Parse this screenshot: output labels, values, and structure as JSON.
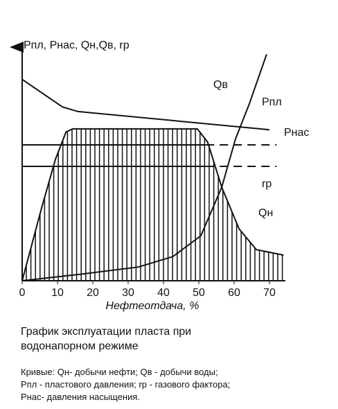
{
  "chart_data": {
    "type": "line",
    "y_label": "Рпл, Рнас, Qн,Qв, rр",
    "x_label": "Нефтеотдача, %",
    "xlim": [
      0,
      74
    ],
    "ylim": [
      0,
      100
    ],
    "xticks": [
      0,
      10,
      20,
      30,
      40,
      50,
      60,
      70
    ],
    "series": [
      {
        "name": "Qв",
        "color": "#111111",
        "x": [
          0,
          17.3,
          32.9,
          42.7,
          50.6,
          56.5,
          60.4,
          64.3,
          69.2
        ],
        "values": [
          0,
          3,
          6,
          10.6,
          19.7,
          40.9,
          62,
          77.3,
          99
        ]
      },
      {
        "name": "Рпл",
        "color": "#111111",
        "x": [
          0,
          11.4,
          15.7,
          70
        ],
        "values": [
          88,
          76,
          74,
          66
        ]
      },
      {
        "name": "Рнас",
        "color": "#111111",
        "x": [
          0,
          52,
          72
        ],
        "values": [
          59.4,
          59.4,
          59.4
        ],
        "dashed_tail": true
      },
      {
        "name": "rр",
        "color": "#111111",
        "x": [
          0,
          52,
          72
        ],
        "values": [
          50,
          50,
          50
        ],
        "dashed_tail": true
      },
      {
        "name": "Qн",
        "color": "#111111",
        "x": [
          0,
          5.5,
          9.4,
          12.4,
          14.3,
          49.6,
          52.5,
          56.5,
          61.4,
          66.3,
          74
        ],
        "values": [
          0,
          31.8,
          53,
          65,
          66.4,
          66.4,
          60.6,
          40.9,
          22.7,
          13.6,
          11.2
        ],
        "hatched": true
      }
    ]
  },
  "caption": "График эксплуатации пласта при водонапорном режиме",
  "notes": [
    "Кривые: Qн- добычи нефти; Qв - добычи воды;",
    "Рпл - пластового давления;  rр - газового фактора;",
    "Рнас- давления насыщения."
  ]
}
